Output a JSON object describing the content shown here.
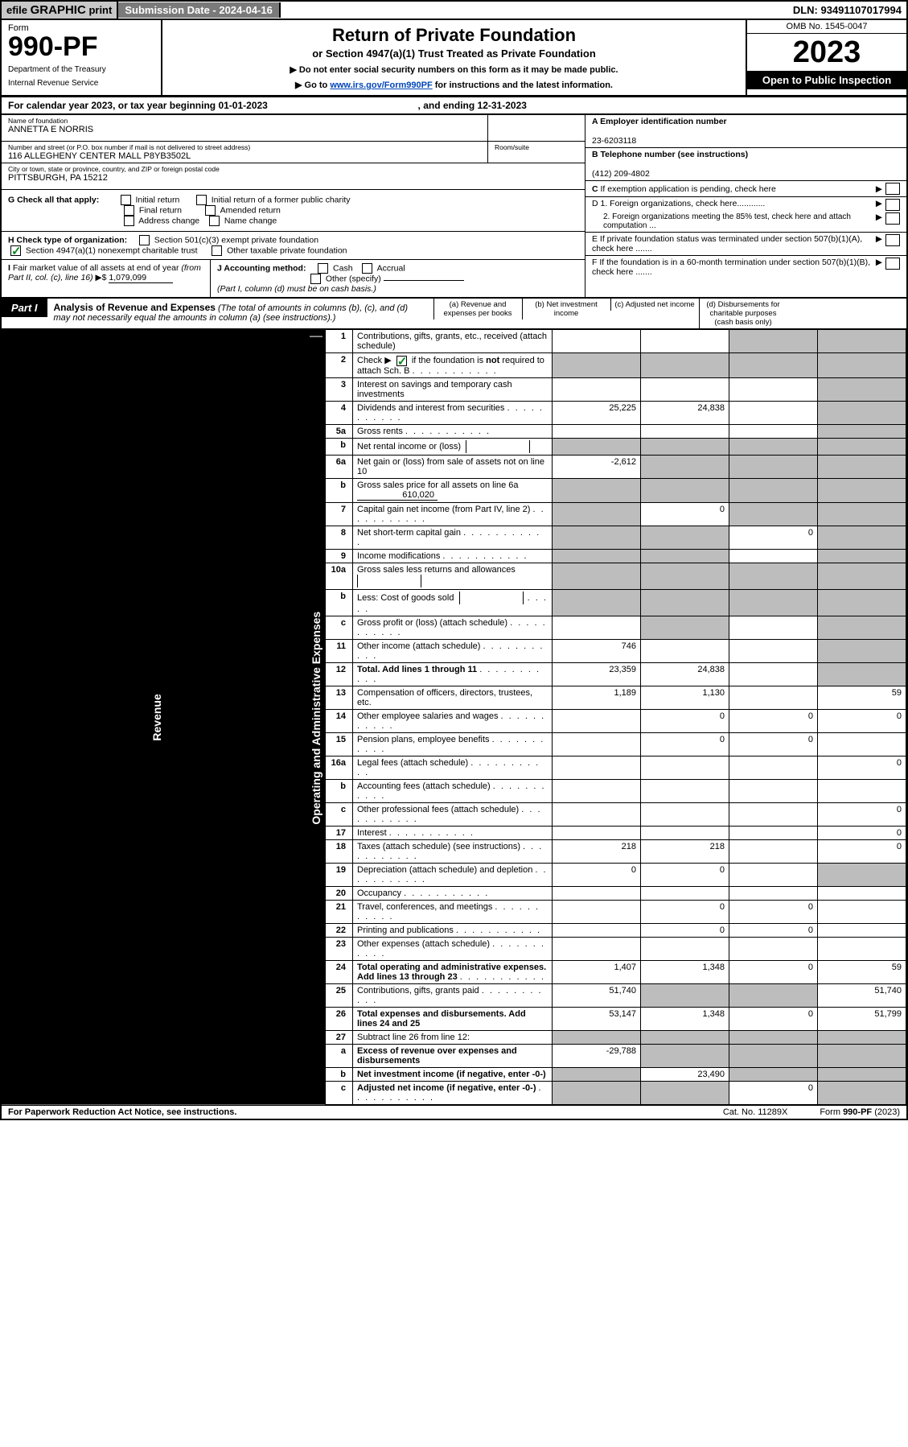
{
  "topbar": {
    "efile": "efile",
    "graphic": "GRAPHIC",
    "print": "print",
    "submission": "Submission Date - 2024-04-16",
    "dln": "DLN: 93491107017994"
  },
  "header": {
    "form": "Form",
    "num": "990-PF",
    "dept": "Department of the Treasury",
    "irs": "Internal Revenue Service",
    "title": "Return of Private Foundation",
    "subtitle": "or Section 4947(a)(1) Trust Treated as Private Foundation",
    "note1": "▶ Do not enter social security numbers on this form as it may be made public.",
    "note2a": "▶ Go to ",
    "note2link": "www.irs.gov/Form990PF",
    "note2b": " for instructions and the latest information.",
    "omb": "OMB No. 1545-0047",
    "year": "2023",
    "open": "Open to Public Inspection"
  },
  "calyear": {
    "prefix": "For calendar year 2023, or tax year beginning ",
    "begin": "01-01-2023",
    "mid": ", and ending ",
    "end": "12-31-2023"
  },
  "id": {
    "name_lbl": "Name of foundation",
    "name": "ANNETTA E NORRIS",
    "addr_lbl": "Number and street (or P.O. box number if mail is not delivered to street address)",
    "addr": "116 ALLEGHENY CENTER MALL P8YB3502L",
    "room_lbl": "Room/suite",
    "city_lbl": "City or town, state or province, country, and ZIP or foreign postal code",
    "city": "PITTSBURGH, PA  15212",
    "ein_lbl": "A Employer identification number",
    "ein": "23-6203118",
    "tel_lbl": "B Telephone number (see instructions)",
    "tel": "(412) 209-4802",
    "c": "C If exemption application is pending, check here",
    "d1": "D 1. Foreign organizations, check here............",
    "d2": "2. Foreign organizations meeting the 85% test, check here and attach computation ...",
    "e": "E If private foundation status was terminated under section 507(b)(1)(A), check here .......",
    "f": "F If the foundation is in a 60-month termination under section 507(b)(1)(B), check here .......",
    "g": "G Check all that apply:",
    "g1": "Initial return",
    "g2": "Initial return of a former public charity",
    "g3": "Final return",
    "g4": "Amended return",
    "g5": "Address change",
    "g6": "Name change",
    "h": "H Check type of organization:",
    "h1": "Section 501(c)(3) exempt private foundation",
    "h2": "Section 4947(a)(1) nonexempt charitable trust",
    "h3": "Other taxable private foundation",
    "i_lbl": "I Fair market value of all assets at end of year (from Part II, col. (c), line 16) ▶$",
    "i_val": "1,079,099",
    "j": "J Accounting method:",
    "j1": "Cash",
    "j2": "Accrual",
    "j3": "Other (specify)",
    "j_note": "(Part I, column (d) must be on cash basis.)"
  },
  "part1": {
    "label": "Part I",
    "title": "Analysis of Revenue and Expenses",
    "note": "(The total of amounts in columns (b), (c), and (d) may not necessarily equal the amounts in column (a) (see instructions).)",
    "col_a": "(a) Revenue and expenses per books",
    "col_b": "(b) Net investment income",
    "col_c": "(c) Adjusted net income",
    "col_d": "(d) Disbursements for charitable purposes (cash basis only)",
    "side_revenue": "Revenue",
    "side_expenses": "Operating and Administrative Expenses"
  },
  "rows": {
    "r1": {
      "n": "1",
      "d": "Contributions, gifts, grants, etc., received (attach schedule)",
      "a": "",
      "b": "",
      "c": "g",
      "dd": "g"
    },
    "r2": {
      "n": "2",
      "d": "Check ▶ ☑ if the foundation is not required to attach Sch. B",
      "dots": true,
      "a": "g",
      "b": "g",
      "c": "g",
      "dd": "g"
    },
    "r3": {
      "n": "3",
      "d": "Interest on savings and temporary cash investments",
      "a": "",
      "b": "",
      "c": "",
      "dd": "g"
    },
    "r4": {
      "n": "4",
      "d": "Dividends and interest from securities",
      "dots": true,
      "a": "25,225",
      "b": "24,838",
      "c": "",
      "dd": "g"
    },
    "r5a": {
      "n": "5a",
      "d": "Gross rents",
      "dots": true,
      "a": "",
      "b": "",
      "c": "",
      "dd": "g"
    },
    "r5b": {
      "n": "b",
      "d": "Net rental income or (loss)",
      "inline": true,
      "a": "g",
      "b": "g",
      "c": "g",
      "dd": "g"
    },
    "r6a": {
      "n": "6a",
      "d": "Net gain or (loss) from sale of assets not on line 10",
      "a": "-2,612",
      "b": "g",
      "c": "g",
      "dd": "g"
    },
    "r6b": {
      "n": "b",
      "d": "Gross sales price for all assets on line 6a",
      "inline_val": "610,020",
      "a": "g",
      "b": "g",
      "c": "g",
      "dd": "g"
    },
    "r7": {
      "n": "7",
      "d": "Capital gain net income (from Part IV, line 2)",
      "dots": true,
      "a": "g",
      "b": "0",
      "c": "g",
      "dd": "g"
    },
    "r8": {
      "n": "8",
      "d": "Net short-term capital gain",
      "dots": true,
      "a": "g",
      "b": "g",
      "c": "0",
      "dd": "g"
    },
    "r9": {
      "n": "9",
      "d": "Income modifications",
      "dots": true,
      "a": "g",
      "b": "g",
      "c": "",
      "dd": "g"
    },
    "r10a": {
      "n": "10a",
      "d": "Gross sales less returns and allowances",
      "inline": true,
      "a": "g",
      "b": "g",
      "c": "g",
      "dd": "g"
    },
    "r10b": {
      "n": "b",
      "d": "Less: Cost of goods sold",
      "dots": true,
      "inline": true,
      "a": "g",
      "b": "g",
      "c": "g",
      "dd": "g"
    },
    "r10c": {
      "n": "c",
      "d": "Gross profit or (loss) (attach schedule)",
      "dots": true,
      "a": "",
      "b": "g",
      "c": "",
      "dd": "g"
    },
    "r11": {
      "n": "11",
      "d": "Other income (attach schedule)",
      "dots": true,
      "a": "746",
      "b": "",
      "c": "",
      "dd": "g"
    },
    "r12": {
      "n": "12",
      "d": "Total. Add lines 1 through 11",
      "bold": true,
      "dots": true,
      "a": "23,359",
      "b": "24,838",
      "c": "",
      "dd": "g"
    },
    "r13": {
      "n": "13",
      "d": "Compensation of officers, directors, trustees, etc.",
      "a": "1,189",
      "b": "1,130",
      "c": "",
      "dd": "59"
    },
    "r14": {
      "n": "14",
      "d": "Other employee salaries and wages",
      "dots": true,
      "a": "",
      "b": "0",
      "c": "0",
      "dd": "0"
    },
    "r15": {
      "n": "15",
      "d": "Pension plans, employee benefits",
      "dots": true,
      "a": "",
      "b": "0",
      "c": "0",
      "dd": ""
    },
    "r16a": {
      "n": "16a",
      "d": "Legal fees (attach schedule)",
      "dots": true,
      "a": "",
      "b": "",
      "c": "",
      "dd": "0"
    },
    "r16b": {
      "n": "b",
      "d": "Accounting fees (attach schedule)",
      "dots": true,
      "a": "",
      "b": "",
      "c": "",
      "dd": ""
    },
    "r16c": {
      "n": "c",
      "d": "Other professional fees (attach schedule)",
      "dots": true,
      "a": "",
      "b": "",
      "c": "",
      "dd": "0"
    },
    "r17": {
      "n": "17",
      "d": "Interest",
      "dots": true,
      "a": "",
      "b": "",
      "c": "",
      "dd": "0"
    },
    "r18": {
      "n": "18",
      "d": "Taxes (attach schedule) (see instructions)",
      "dots": true,
      "a": "218",
      "b": "218",
      "c": "",
      "dd": "0"
    },
    "r19": {
      "n": "19",
      "d": "Depreciation (attach schedule) and depletion",
      "dots": true,
      "a": "0",
      "b": "0",
      "c": "",
      "dd": "g"
    },
    "r20": {
      "n": "20",
      "d": "Occupancy",
      "dots": true,
      "a": "",
      "b": "",
      "c": "",
      "dd": ""
    },
    "r21": {
      "n": "21",
      "d": "Travel, conferences, and meetings",
      "dots": true,
      "a": "",
      "b": "0",
      "c": "0",
      "dd": ""
    },
    "r22": {
      "n": "22",
      "d": "Printing and publications",
      "dots": true,
      "a": "",
      "b": "0",
      "c": "0",
      "dd": ""
    },
    "r23": {
      "n": "23",
      "d": "Other expenses (attach schedule)",
      "dots": true,
      "a": "",
      "b": "",
      "c": "",
      "dd": ""
    },
    "r24": {
      "n": "24",
      "d": "Total operating and administrative expenses. Add lines 13 through 23",
      "bold": true,
      "dots": true,
      "a": "1,407",
      "b": "1,348",
      "c": "0",
      "dd": "59"
    },
    "r25": {
      "n": "25",
      "d": "Contributions, gifts, grants paid",
      "dots": true,
      "a": "51,740",
      "b": "g",
      "c": "g",
      "dd": "51,740"
    },
    "r26": {
      "n": "26",
      "d": "Total expenses and disbursements. Add lines 24 and 25",
      "bold": true,
      "a": "53,147",
      "b": "1,348",
      "c": "0",
      "dd": "51,799"
    },
    "r27": {
      "n": "27",
      "d": "Subtract line 26 from line 12:",
      "a": "g",
      "b": "g",
      "c": "g",
      "dd": "g"
    },
    "r27a": {
      "n": "a",
      "d": "Excess of revenue over expenses and disbursements",
      "bold": true,
      "a": "-29,788",
      "b": "g",
      "c": "g",
      "dd": "g"
    },
    "r27b": {
      "n": "b",
      "d": "Net investment income (if negative, enter -0-)",
      "bold": true,
      "a": "g",
      "b": "23,490",
      "c": "g",
      "dd": "g"
    },
    "r27c": {
      "n": "c",
      "d": "Adjusted net income (if negative, enter -0-)",
      "bold": true,
      "dots": true,
      "a": "g",
      "b": "g",
      "c": "0",
      "dd": "g"
    }
  },
  "footer": {
    "left": "For Paperwork Reduction Act Notice, see instructions.",
    "mid": "Cat. No. 11289X",
    "right": "Form 990-PF (2023)"
  }
}
